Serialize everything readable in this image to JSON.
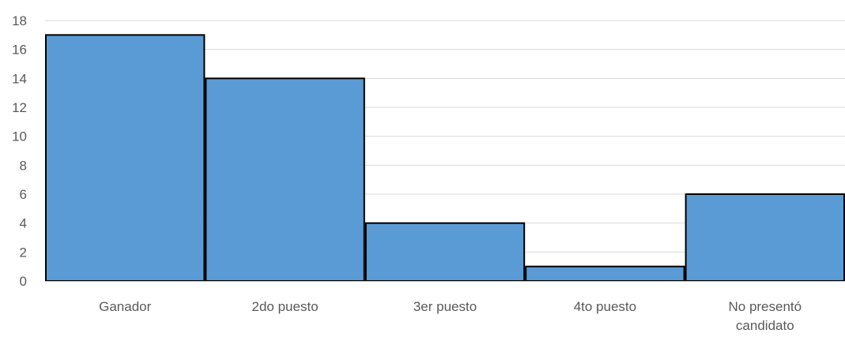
{
  "chart_data": {
    "type": "bar",
    "title": "",
    "xlabel": "",
    "ylabel": "",
    "categories": [
      "Ganador",
      "2do puesto",
      "3er puesto",
      "4to puesto",
      "No presentó candidato"
    ],
    "category_lines": [
      [
        "Ganador"
      ],
      [
        "2do puesto"
      ],
      [
        "3er puesto"
      ],
      [
        "4to puesto"
      ],
      [
        "No presentó",
        "candidato"
      ]
    ],
    "values": [
      17,
      14,
      4,
      1,
      6
    ],
    "ylim": [
      0,
      18
    ],
    "yticks": [
      0,
      2,
      4,
      6,
      8,
      10,
      12,
      14,
      16,
      18
    ],
    "grid": true,
    "legend": "none",
    "bar_color": "#5b9bd5",
    "bar_edge_color": "#000000"
  }
}
